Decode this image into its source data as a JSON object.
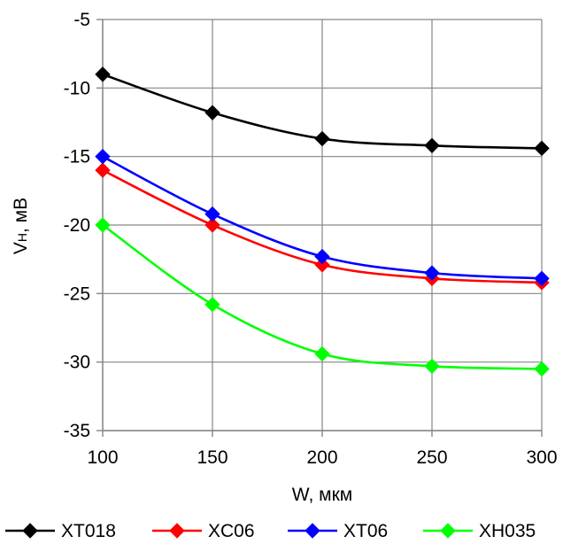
{
  "chart_data": {
    "type": "line",
    "x": [
      100,
      150,
      200,
      250,
      300
    ],
    "series": [
      {
        "name": "XT018",
        "color": "#000000",
        "values": [
          -9.0,
          -11.8,
          -13.7,
          -14.2,
          -14.4
        ]
      },
      {
        "name": "XC06",
        "color": "#ff0000",
        "values": [
          -16.0,
          -20.0,
          -22.9,
          -23.9,
          -24.2
        ]
      },
      {
        "name": "XT06",
        "color": "#0000ff",
        "values": [
          -15.0,
          -19.2,
          -22.3,
          -23.5,
          -23.9
        ]
      },
      {
        "name": "XH035",
        "color": "#00ff00",
        "values": [
          -20.0,
          -25.8,
          -29.4,
          -30.3,
          -30.5
        ]
      }
    ],
    "xlabel": "W, мкм",
    "ylabel": {
      "main": "V",
      "sub": "H",
      "rest": ", мВ"
    },
    "xlim": [
      100,
      300
    ],
    "ylim": [
      -35,
      -5
    ],
    "x_ticks": [
      100,
      150,
      200,
      250,
      300
    ],
    "y_ticks": [
      -35,
      -30,
      -25,
      -20,
      -15,
      -10,
      -5
    ],
    "y_tick_labels": [
      "-35",
      "-30",
      "-25",
      "-20",
      "-15",
      "-10",
      "-5"
    ],
    "grid": true,
    "legend_position": "bottom",
    "marker": "diamond",
    "smooth": true
  }
}
